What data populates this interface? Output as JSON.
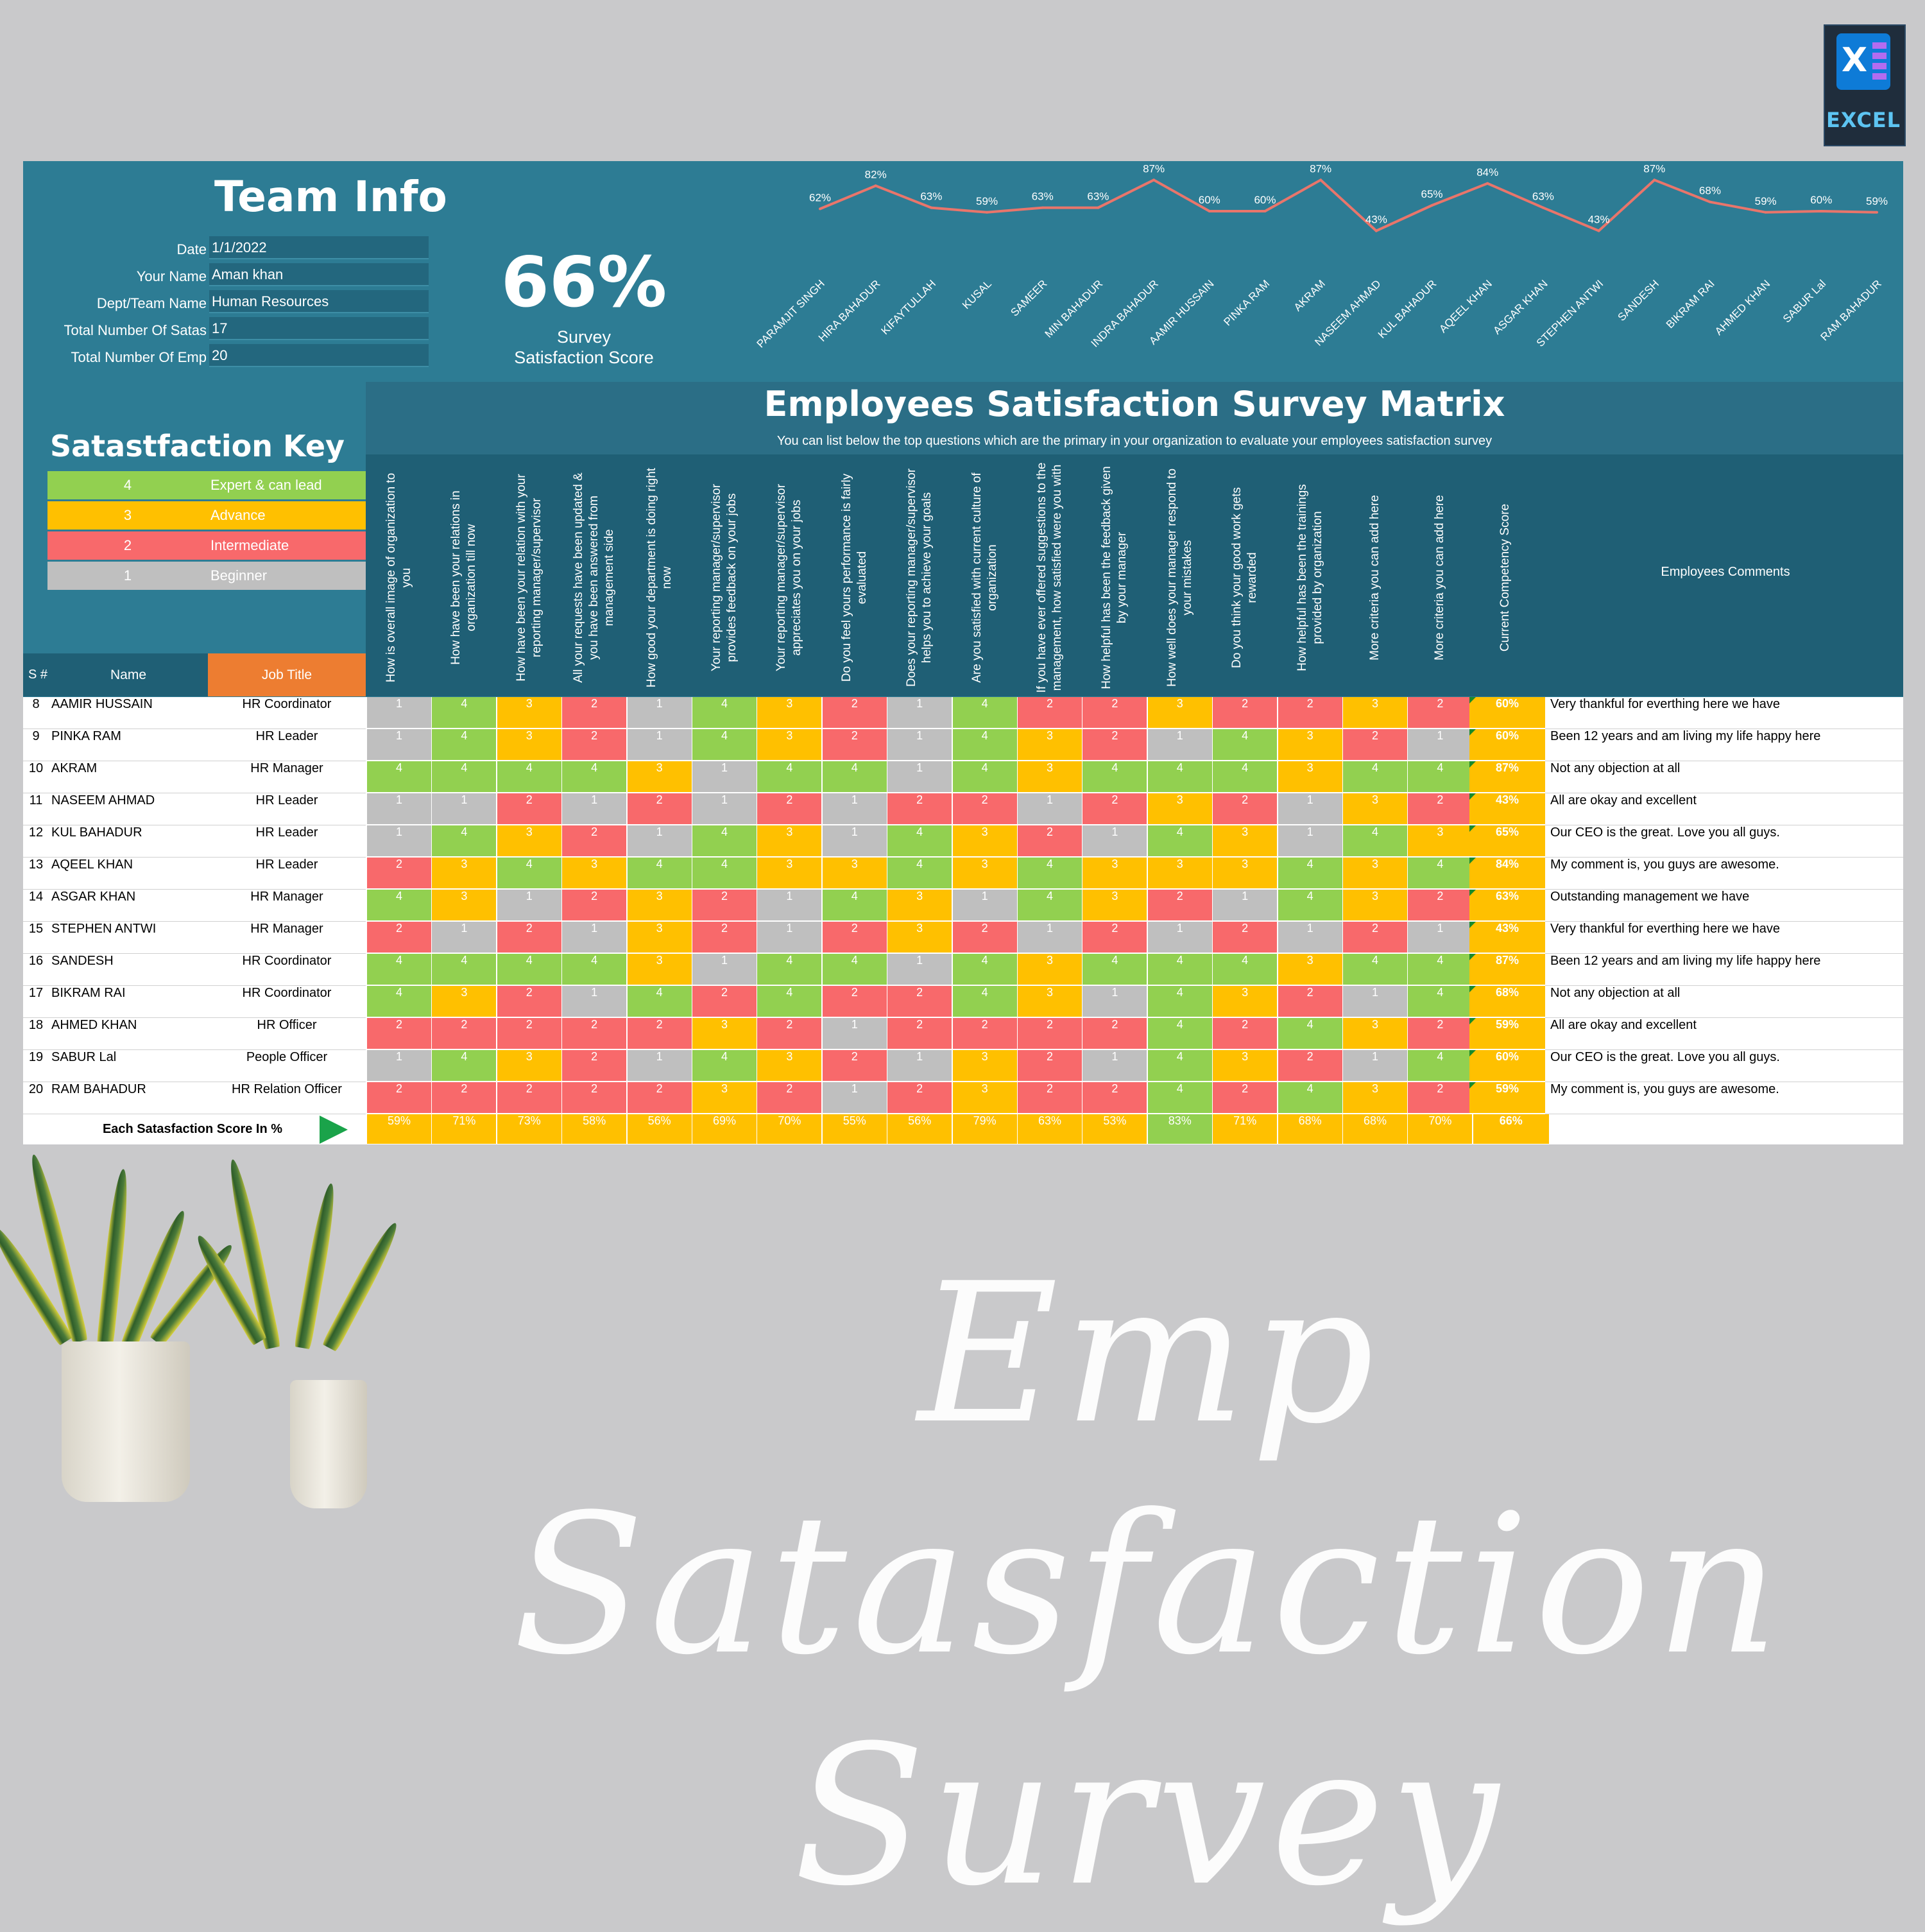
{
  "badge": {
    "label": "EXCEL"
  },
  "team_info": {
    "title": "Team Info",
    "fields": [
      {
        "label": "Date",
        "value": "1/1/2022"
      },
      {
        "label": "Your Name",
        "value": "Aman khan"
      },
      {
        "label": "Dept/Team Name",
        "value": "Human Resources"
      },
      {
        "label": "Total Number Of Satas",
        "value": "17"
      },
      {
        "label": "Total Number Of Emp",
        "value": "20"
      }
    ]
  },
  "score": {
    "value": "66%",
    "line1": "Survey",
    "line2": "Satisfaction Score"
  },
  "chart_data": {
    "type": "line",
    "categories": [
      "PARAMJIT SINGH",
      "HIRA BAHADUR",
      "KIFAYTULLAH",
      "KUSAL",
      "SAMEER",
      "MIN BAHADUR",
      "INDRA BAHADUR",
      "AAMIR HUSSAIN",
      "PINKA RAM",
      "AKRAM",
      "NASEEM AHMAD",
      "KUL BAHADUR",
      "AQEEL KHAN",
      "ASGAR KHAN",
      "STEPHEN ANTWI",
      "SANDESH",
      "BIKRAM RAI",
      "AHMED KHAN",
      "SABUR Lal",
      "RAM BAHADUR"
    ],
    "values": [
      62,
      82,
      63,
      59,
      63,
      63,
      87,
      60,
      60,
      87,
      43,
      65,
      84,
      63,
      43,
      87,
      68,
      59,
      60,
      59
    ],
    "labels": [
      "62%",
      "82%",
      "63%",
      "59%",
      "63%",
      "63%",
      "87%",
      "60%",
      "60%",
      "87%",
      "43%",
      "65%",
      "84%",
      "63%",
      "43%",
      "87%",
      "68%",
      "59%",
      "60%",
      "59%"
    ],
    "line_color": "#e9756b",
    "ylim": [
      0,
      100
    ]
  },
  "key": {
    "title": "Satastfaction Key",
    "items": [
      {
        "num": "4",
        "label": "Expert & can lead",
        "color": "#92d050"
      },
      {
        "num": "3",
        "label": "Advance",
        "color": "#ffc000"
      },
      {
        "num": "2",
        "label": "Intermediate",
        "color": "#f8696b"
      },
      {
        "num": "1",
        "label": "Beginner",
        "color": "#bfbfbf"
      }
    ]
  },
  "matrix": {
    "title": "Employees Satisfaction Survey Matrix",
    "subtitle": "You can list below the top questions which are the primary in your organization to evaluate your employees satisfaction survey",
    "questions": [
      "How is overall image of organization to you",
      "How have been your relations in organization till now",
      "How have been your relation with your reporting manager/supervisor",
      "All your requests have been updated & you have been answered from management side",
      "How good your department is doing right now",
      "Your reporting manager/supervisor provides feedback on your jobs",
      "Your reporting manager/supervisor appreciates you on your jobs",
      "Do you feel yours performance is fairly evaluated",
      "Does your reporting manager/supervisor helps you to achieve your goals",
      "Are you satisfied with current culture of organization",
      "If you have ever offered suggestions to the management, how satisfied were you with",
      "How helpful has been the feedback given by your manager",
      "How well does your manager respond to your mistakes",
      "Do you think your good work gets rewarded",
      "How helpful has been the trainings provided by organization",
      "More criteria you can add here",
      "More criteria you can add here",
      "Current Competency Score"
    ],
    "comments_header": "Employees Comments",
    "col_sn": "S #",
    "col_name": "Name",
    "col_job": "Job Title",
    "rows": [
      {
        "sn": "8",
        "name": "AAMIR HUSSAIN",
        "job": "HR Coordinator",
        "scores": [
          "1",
          "4",
          "3",
          "2",
          "1",
          "4",
          "3",
          "2",
          "1",
          "4",
          "2",
          "2",
          "3",
          "2",
          "2",
          "3",
          "2"
        ],
        "comp": "60%",
        "comment": "Very thankful for everthing here we have"
      },
      {
        "sn": "9",
        "name": "PINKA RAM",
        "job": "HR Leader",
        "scores": [
          "1",
          "4",
          "3",
          "2",
          "1",
          "4",
          "3",
          "2",
          "1",
          "4",
          "3",
          "2",
          "1",
          "4",
          "3",
          "2",
          "1"
        ],
        "comp": "60%",
        "comment": "Been 12 years and am living my life happy here"
      },
      {
        "sn": "10",
        "name": "AKRAM",
        "job": "HR Manager",
        "scores": [
          "4",
          "4",
          "4",
          "4",
          "3",
          "1",
          "4",
          "4",
          "1",
          "4",
          "3",
          "4",
          "4",
          "4",
          "3",
          "4",
          "4"
        ],
        "comp": "87%",
        "comment": "Not any objection at all"
      },
      {
        "sn": "11",
        "name": "NASEEM AHMAD",
        "job": "HR Leader",
        "scores": [
          "1",
          "1",
          "2",
          "1",
          "2",
          "1",
          "2",
          "1",
          "2",
          "2",
          "1",
          "2",
          "3",
          "2",
          "1",
          "3",
          "2"
        ],
        "comp": "43%",
        "comment": "All are okay and excellent"
      },
      {
        "sn": "12",
        "name": "KUL BAHADUR",
        "job": "HR Leader",
        "scores": [
          "1",
          "4",
          "3",
          "2",
          "1",
          "4",
          "3",
          "1",
          "4",
          "3",
          "2",
          "1",
          "4",
          "3",
          "1",
          "4",
          "3"
        ],
        "comp": "65%",
        "comment": "Our CEO is the great. Love you all guys."
      },
      {
        "sn": "13",
        "name": "AQEEL KHAN",
        "job": "HR Leader",
        "scores": [
          "2",
          "3",
          "4",
          "3",
          "4",
          "4",
          "3",
          "3",
          "4",
          "3",
          "4",
          "3",
          "3",
          "3",
          "4",
          "3",
          "4"
        ],
        "comp": "84%",
        "comment": "My comment is, you guys are awesome."
      },
      {
        "sn": "14",
        "name": "ASGAR KHAN",
        "job": "HR Manager",
        "scores": [
          "4",
          "3",
          "1",
          "2",
          "3",
          "2",
          "1",
          "4",
          "3",
          "1",
          "4",
          "3",
          "2",
          "1",
          "4",
          "3",
          "2"
        ],
        "comp": "63%",
        "comment": "Outstanding management we have"
      },
      {
        "sn": "15",
        "name": "STEPHEN ANTWI",
        "job": "HR Manager",
        "scores": [
          "2",
          "1",
          "2",
          "1",
          "3",
          "2",
          "1",
          "2",
          "3",
          "2",
          "1",
          "2",
          "1",
          "2",
          "1",
          "2",
          "1"
        ],
        "comp": "43%",
        "comment": "Very thankful for everthing here we have"
      },
      {
        "sn": "16",
        "name": "SANDESH",
        "job": "HR Coordinator",
        "scores": [
          "4",
          "4",
          "4",
          "4",
          "3",
          "1",
          "4",
          "4",
          "1",
          "4",
          "3",
          "4",
          "4",
          "4",
          "3",
          "4",
          "4"
        ],
        "comp": "87%",
        "comment": "Been 12 years and am living my life happy here"
      },
      {
        "sn": "17",
        "name": "BIKRAM RAI",
        "job": "HR Coordinator",
        "scores": [
          "4",
          "3",
          "2",
          "1",
          "4",
          "2",
          "4",
          "2",
          "2",
          "4",
          "3",
          "1",
          "4",
          "3",
          "2",
          "1",
          "4"
        ],
        "comp": "68%",
        "comment": "Not any objection at all"
      },
      {
        "sn": "18",
        "name": "AHMED KHAN",
        "job": "HR Officer",
        "scores": [
          "2",
          "2",
          "2",
          "2",
          "2",
          "3",
          "2",
          "1",
          "2",
          "2",
          "2",
          "2",
          "4",
          "2",
          "4",
          "3",
          "2"
        ],
        "comp": "59%",
        "comment": "All are okay and excellent"
      },
      {
        "sn": "19",
        "name": "SABUR Lal",
        "job": "People Officer",
        "scores": [
          "1",
          "4",
          "3",
          "2",
          "1",
          "4",
          "3",
          "2",
          "1",
          "3",
          "2",
          "1",
          "4",
          "3",
          "2",
          "1",
          "4"
        ],
        "comp": "60%",
        "comment": "Our CEO is the great. Love you all guys."
      },
      {
        "sn": "20",
        "name": "RAM BAHADUR",
        "job": "HR Relation Officer",
        "scores": [
          "2",
          "2",
          "2",
          "2",
          "2",
          "3",
          "2",
          "1",
          "2",
          "3",
          "2",
          "2",
          "4",
          "2",
          "4",
          "3",
          "2"
        ],
        "comp": "59%",
        "comment": "My comment is, you guys are awesome."
      }
    ],
    "footer": {
      "label": "Each Satasfaction Score In %",
      "values": [
        "59%",
        "71%",
        "73%",
        "58%",
        "56%",
        "69%",
        "70%",
        "55%",
        "56%",
        "79%",
        "63%",
        "53%",
        "83%",
        "71%",
        "68%",
        "68%",
        "70%"
      ],
      "comp": "66%"
    }
  },
  "banner": {
    "script_title": "Emp Satasfaction Survey"
  }
}
